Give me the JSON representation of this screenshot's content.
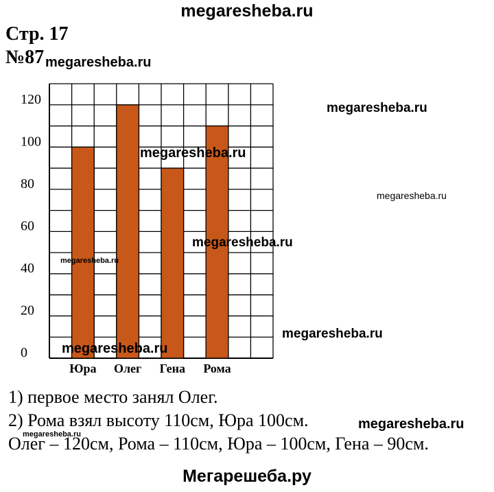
{
  "header": {
    "site_top": "megaresheba.ru",
    "page_label": "Стр. 17",
    "task_label": "№87"
  },
  "chart_data": {
    "type": "bar",
    "categories": [
      "Юра",
      "Олег",
      "Гена",
      "Рома"
    ],
    "values": [
      100,
      120,
      90,
      110
    ],
    "ylim": [
      0,
      130
    ],
    "yticks": [
      0,
      20,
      40,
      60,
      80,
      100,
      120
    ],
    "grid": true,
    "bar_color": "#c8581a"
  },
  "answers": {
    "line1": "1) первое место занял Олег.",
    "line2": "2) Рома взял высоту 110см, Юра 100см.",
    "line3": "Олег – 120см, Рома – 110см, Юра – 100см, Гена – 90см."
  },
  "watermarks": {
    "small": "megaresheba.ru"
  },
  "footer": {
    "site_bottom": "Мегарешеба.ру"
  }
}
